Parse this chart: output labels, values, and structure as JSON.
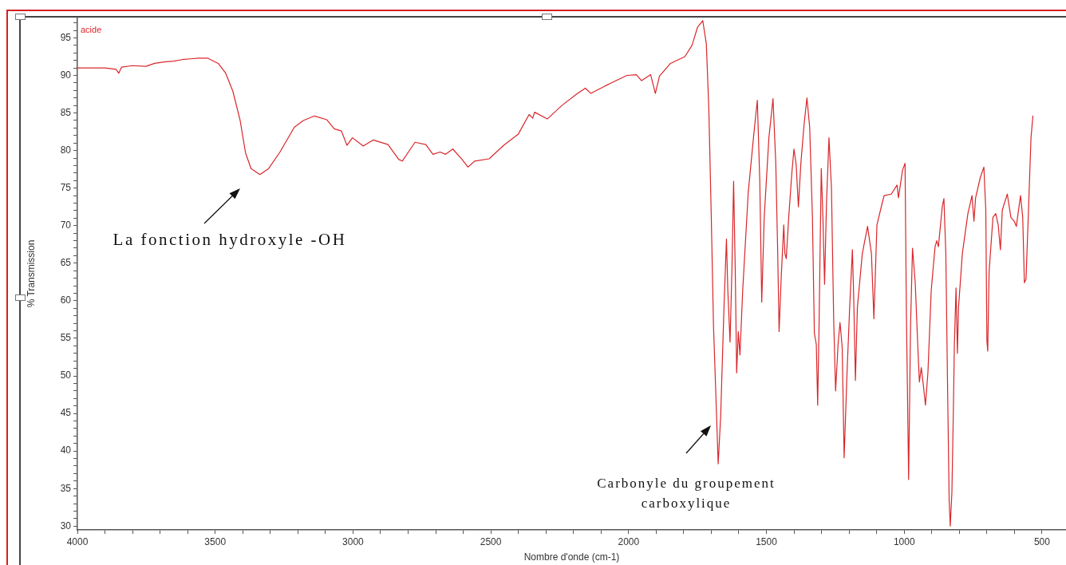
{
  "chart_data": {
    "type": "line",
    "xlabel": "Nombre d'onde (cm-1)",
    "ylabel": "% Transmission",
    "legend": "top left",
    "xlim": [
      4000,
      413
    ],
    "ylim": [
      29.5,
      97.7
    ],
    "xticks": [
      4000,
      {
        "value": 3900,
        "label": null
      },
      {
        "value": 3800,
        "label": null
      },
      {
        "value": 3700,
        "label": null
      },
      {
        "value": 3600,
        "label": null
      },
      3500,
      {
        "value": 3400,
        "label": null
      },
      {
        "value": 3300,
        "label": null
      },
      {
        "value": 3200,
        "label": null
      },
      {
        "value": 3100,
        "label": null
      },
      3000,
      {
        "value": 2900,
        "label": null
      },
      {
        "value": 2800,
        "label": null
      },
      {
        "value": 2700,
        "label": null
      },
      {
        "value": 2600,
        "label": null
      },
      2500,
      {
        "value": 2400,
        "label": null
      },
      {
        "value": 2300,
        "label": null
      },
      {
        "value": 2200,
        "label": null
      },
      {
        "value": 2100,
        "label": null
      },
      2000,
      {
        "value": 1900,
        "label": null
      },
      {
        "value": 1800,
        "label": null
      },
      {
        "value": 1700,
        "label": null
      },
      {
        "value": 1600,
        "label": null
      },
      1500,
      {
        "value": 1400,
        "label": null
      },
      {
        "value": 1300,
        "label": null
      },
      {
        "value": 1200,
        "label": null
      },
      {
        "value": 1100,
        "label": null
      },
      1000,
      {
        "value": 900,
        "label": null
      },
      {
        "value": 800,
        "label": null
      },
      {
        "value": 700,
        "label": null
      },
      {
        "value": 600,
        "label": null
      },
      500
    ],
    "yticks": [
      30,
      {
        "value": 31,
        "label": null
      },
      {
        "value": 32,
        "label": null
      },
      {
        "value": 33,
        "label": null
      },
      {
        "value": 34,
        "label": null
      },
      35,
      {
        "value": 36,
        "label": null
      },
      {
        "value": 37,
        "label": null
      },
      {
        "value": 38,
        "label": null
      },
      {
        "value": 39,
        "label": null
      },
      40,
      {
        "value": 41,
        "label": null
      },
      {
        "value": 42,
        "label": null
      },
      {
        "value": 43,
        "label": null
      },
      {
        "value": 44,
        "label": null
      },
      45,
      {
        "value": 46,
        "label": null
      },
      {
        "value": 47,
        "label": null
      },
      {
        "value": 48,
        "label": null
      },
      {
        "value": 49,
        "label": null
      },
      50,
      {
        "value": 51,
        "label": null
      },
      {
        "value": 52,
        "label": null
      },
      {
        "value": 53,
        "label": null
      },
      {
        "value": 54,
        "label": null
      },
      55,
      {
        "value": 56,
        "label": null
      },
      {
        "value": 57,
        "label": null
      },
      {
        "value": 58,
        "label": null
      },
      {
        "value": 59,
        "label": null
      },
      60,
      {
        "value": 61,
        "label": null
      },
      {
        "value": 62,
        "label": null
      },
      {
        "value": 63,
        "label": null
      },
      {
        "value": 64,
        "label": null
      },
      65,
      {
        "value": 66,
        "label": null
      },
      {
        "value": 67,
        "label": null
      },
      {
        "value": 68,
        "label": null
      },
      {
        "value": 69,
        "label": null
      },
      70,
      {
        "value": 71,
        "label": null
      },
      {
        "value": 72,
        "label": null
      },
      {
        "value": 73,
        "label": null
      },
      {
        "value": 74,
        "label": null
      },
      75,
      {
        "value": 76,
        "label": null
      },
      {
        "value": 77,
        "label": null
      },
      {
        "value": 78,
        "label": null
      },
      {
        "value": 79,
        "label": null
      },
      80,
      {
        "value": 81,
        "label": null
      },
      {
        "value": 82,
        "label": null
      },
      {
        "value": 83,
        "label": null
      },
      {
        "value": 84,
        "label": null
      },
      85,
      {
        "value": 86,
        "label": null
      },
      {
        "value": 87,
        "label": null
      },
      {
        "value": 88,
        "label": null
      },
      {
        "value": 89,
        "label": null
      },
      90,
      {
        "value": 91,
        "label": null
      },
      {
        "value": 92,
        "label": null
      },
      {
        "value": 93,
        "label": null
      },
      {
        "value": 94,
        "label": null
      },
      95,
      {
        "value": 96,
        "label": null
      },
      {
        "value": 97,
        "label": null
      }
    ],
    "x": [
      4000,
      3950,
      3900,
      3860,
      3850,
      3840,
      3800,
      3751,
      3720,
      3686,
      3650,
      3621,
      3590,
      3560,
      3528,
      3489,
      3462,
      3436,
      3410,
      3390,
      3370,
      3338,
      3306,
      3265,
      3213,
      3180,
      3140,
      3095,
      3068,
      3042,
      3022,
      3002,
      2963,
      2927,
      2873,
      2834,
      2821,
      2775,
      2736,
      2710,
      2684,
      2664,
      2638,
      2604,
      2583,
      2558,
      2506,
      2453,
      2400,
      2361,
      2348,
      2341,
      2295,
      2242,
      2189,
      2157,
      2137,
      2085,
      2006,
      1972,
      1953,
      1920,
      1903,
      1888,
      1848,
      1796,
      1770,
      1750,
      1731,
      1718,
      1709,
      1700,
      1692,
      1683,
      1675,
      1666,
      1654,
      1645,
      1640,
      1632,
      1625,
      1619,
      1613,
      1608,
      1602,
      1596,
      1586,
      1566,
      1547,
      1533,
      1524,
      1517,
      1508,
      1491,
      1476,
      1466,
      1459,
      1454,
      1446,
      1437,
      1433,
      1428,
      1420,
      1408,
      1400,
      1392,
      1384,
      1375,
      1363,
      1353,
      1343,
      1333,
      1326,
      1319,
      1314,
      1309,
      1301,
      1295,
      1289,
      1282,
      1273,
      1264,
      1256,
      1249,
      1240,
      1233,
      1225,
      1218,
      1208,
      1198,
      1188,
      1183,
      1177,
      1170,
      1152,
      1133,
      1119,
      1110,
      1099,
      1080,
      1073,
      1047,
      1026,
      1021,
      1006,
      997,
      992,
      984,
      977,
      970,
      960,
      951,
      945,
      938,
      931,
      923,
      914,
      902,
      888,
      882,
      876,
      862,
      856,
      849,
      843,
      837,
      833,
      827,
      822,
      818,
      812,
      807,
      803,
      789,
      769,
      754,
      747,
      741,
      724,
      711,
      704,
      700,
      697,
      692,
      678,
      668,
      659,
      651,
      644,
      626,
      613,
      601,
      593,
      587,
      578,
      570,
      564,
      558,
      550,
      540,
      533
    ],
    "series": [
      {
        "name": "acide",
        "color": "#d9262a",
        "values": [
          91.0,
          91.0,
          91.0,
          90.8,
          90.3,
          91.1,
          91.3,
          91.2,
          91.6,
          91.8,
          91.9,
          92.1,
          92.2,
          92.3,
          92.3,
          91.6,
          90.3,
          87.9,
          84.1,
          79.7,
          77.6,
          76.8,
          77.6,
          79.8,
          83.1,
          84.0,
          84.6,
          84.1,
          82.9,
          82.6,
          80.7,
          81.7,
          80.6,
          81.4,
          80.8,
          78.8,
          78.6,
          81.1,
          80.8,
          79.5,
          79.8,
          79.5,
          80.2,
          78.8,
          77.8,
          78.6,
          78.9,
          80.7,
          82.2,
          84.8,
          84.3,
          85.1,
          84.2,
          86.0,
          87.5,
          88.3,
          87.6,
          88.6,
          90.0,
          90.1,
          89.3,
          90.1,
          87.6,
          89.9,
          91.6,
          92.5,
          94.0,
          96.4,
          97.3,
          94.2,
          85.6,
          71.1,
          56.7,
          47.0,
          38.3,
          44.6,
          59.1,
          68.2,
          61.4,
          54.5,
          64.4,
          75.9,
          63.9,
          50.4,
          55.9,
          52.8,
          61.4,
          74.4,
          81.7,
          86.7,
          75.9,
          59.8,
          71.1,
          81.7,
          86.9,
          78.3,
          66.3,
          55.9,
          63.4,
          70.1,
          66.3,
          65.6,
          70.6,
          76.9,
          80.2,
          78.1,
          72.5,
          78.3,
          83.6,
          87.0,
          83.1,
          71.1,
          55.7,
          54.2,
          46.1,
          56.7,
          77.6,
          71.1,
          62.2,
          73.0,
          81.7,
          75.0,
          57.6,
          48.0,
          54.2,
          57.1,
          53.8,
          39.1,
          49.9,
          59.1,
          66.8,
          60.0,
          49.4,
          59.1,
          66.3,
          69.9,
          66.3,
          57.6,
          70.1,
          73.0,
          74.0,
          74.2,
          75.4,
          73.7,
          77.4,
          78.3,
          58.1,
          36.2,
          56.7,
          67.0,
          62.4,
          54.2,
          49.2,
          51.1,
          48.9,
          46.1,
          50.4,
          61.4,
          67.2,
          68.0,
          67.2,
          72.5,
          73.6,
          66.3,
          49.4,
          33.6,
          30.0,
          34.5,
          44.6,
          54.2,
          61.7,
          53.0,
          59.1,
          66.3,
          71.6,
          74.0,
          70.6,
          73.7,
          76.4,
          77.8,
          72.1,
          54.7,
          53.3,
          63.9,
          71.1,
          71.6,
          70.1,
          66.8,
          72.1,
          74.2,
          71.1,
          70.6,
          69.9,
          71.6,
          74.0,
          71.1,
          62.4,
          62.9,
          71.1,
          81.7,
          84.6
        ]
      }
    ],
    "annotations": [
      "La fonction hydroxyle -OH",
      "Carbonyle du groupement\ncarboxylique"
    ]
  }
}
